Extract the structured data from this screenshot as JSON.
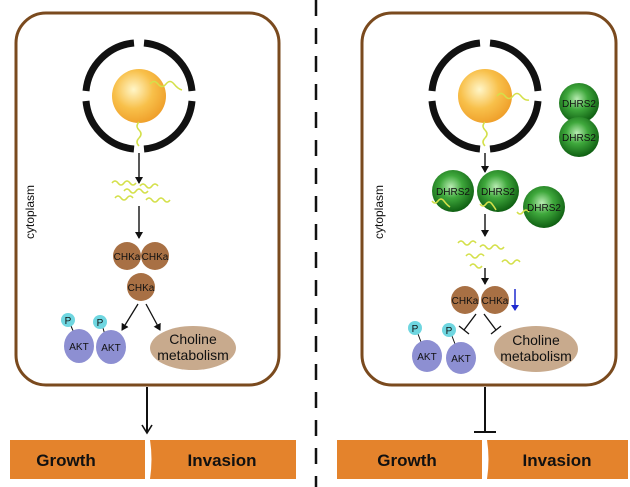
{
  "colors": {
    "cell_border": "#7a4a1e",
    "nucleus_yellow": "#f6b73c",
    "chka_brown": "#a87044",
    "akt_purple": "#8d8fd2",
    "phospho_teal": "#6fd6e0",
    "choline_tan": "#c8aa8d",
    "dhrs2_green": "#1a7a1a",
    "bar_orange": "#e4832c",
    "choline_wave": "#d4e04a",
    "down_arrow_blue": "#1f2bcf"
  },
  "left_panel": {
    "cytoplasm_label": "cytoplasm",
    "chka_labels": [
      "CHKa",
      "CHKa",
      "CHKa"
    ],
    "phospho_labels": [
      "P",
      "P"
    ],
    "akt_labels": [
      "AKT",
      "AKT"
    ],
    "choline_line1": "Choline",
    "choline_line2": "metabolism",
    "growth_label": "Growth",
    "invasion_label": "Invasion"
  },
  "right_panel": {
    "cytoplasm_label": "cytoplasm",
    "dhrs2_labels": [
      "DHRS2",
      "DHRS2",
      "DHRS2",
      "DHRS2",
      "DHRS2"
    ],
    "chka_labels": [
      "CHKa",
      "CHKa"
    ],
    "phospho_labels": [
      "P",
      "P"
    ],
    "akt_labels": [
      "AKT",
      "AKT"
    ],
    "choline_line1": "Choline",
    "choline_line2": "metabolism",
    "growth_label": "Growth",
    "invasion_label": "Invasion"
  }
}
